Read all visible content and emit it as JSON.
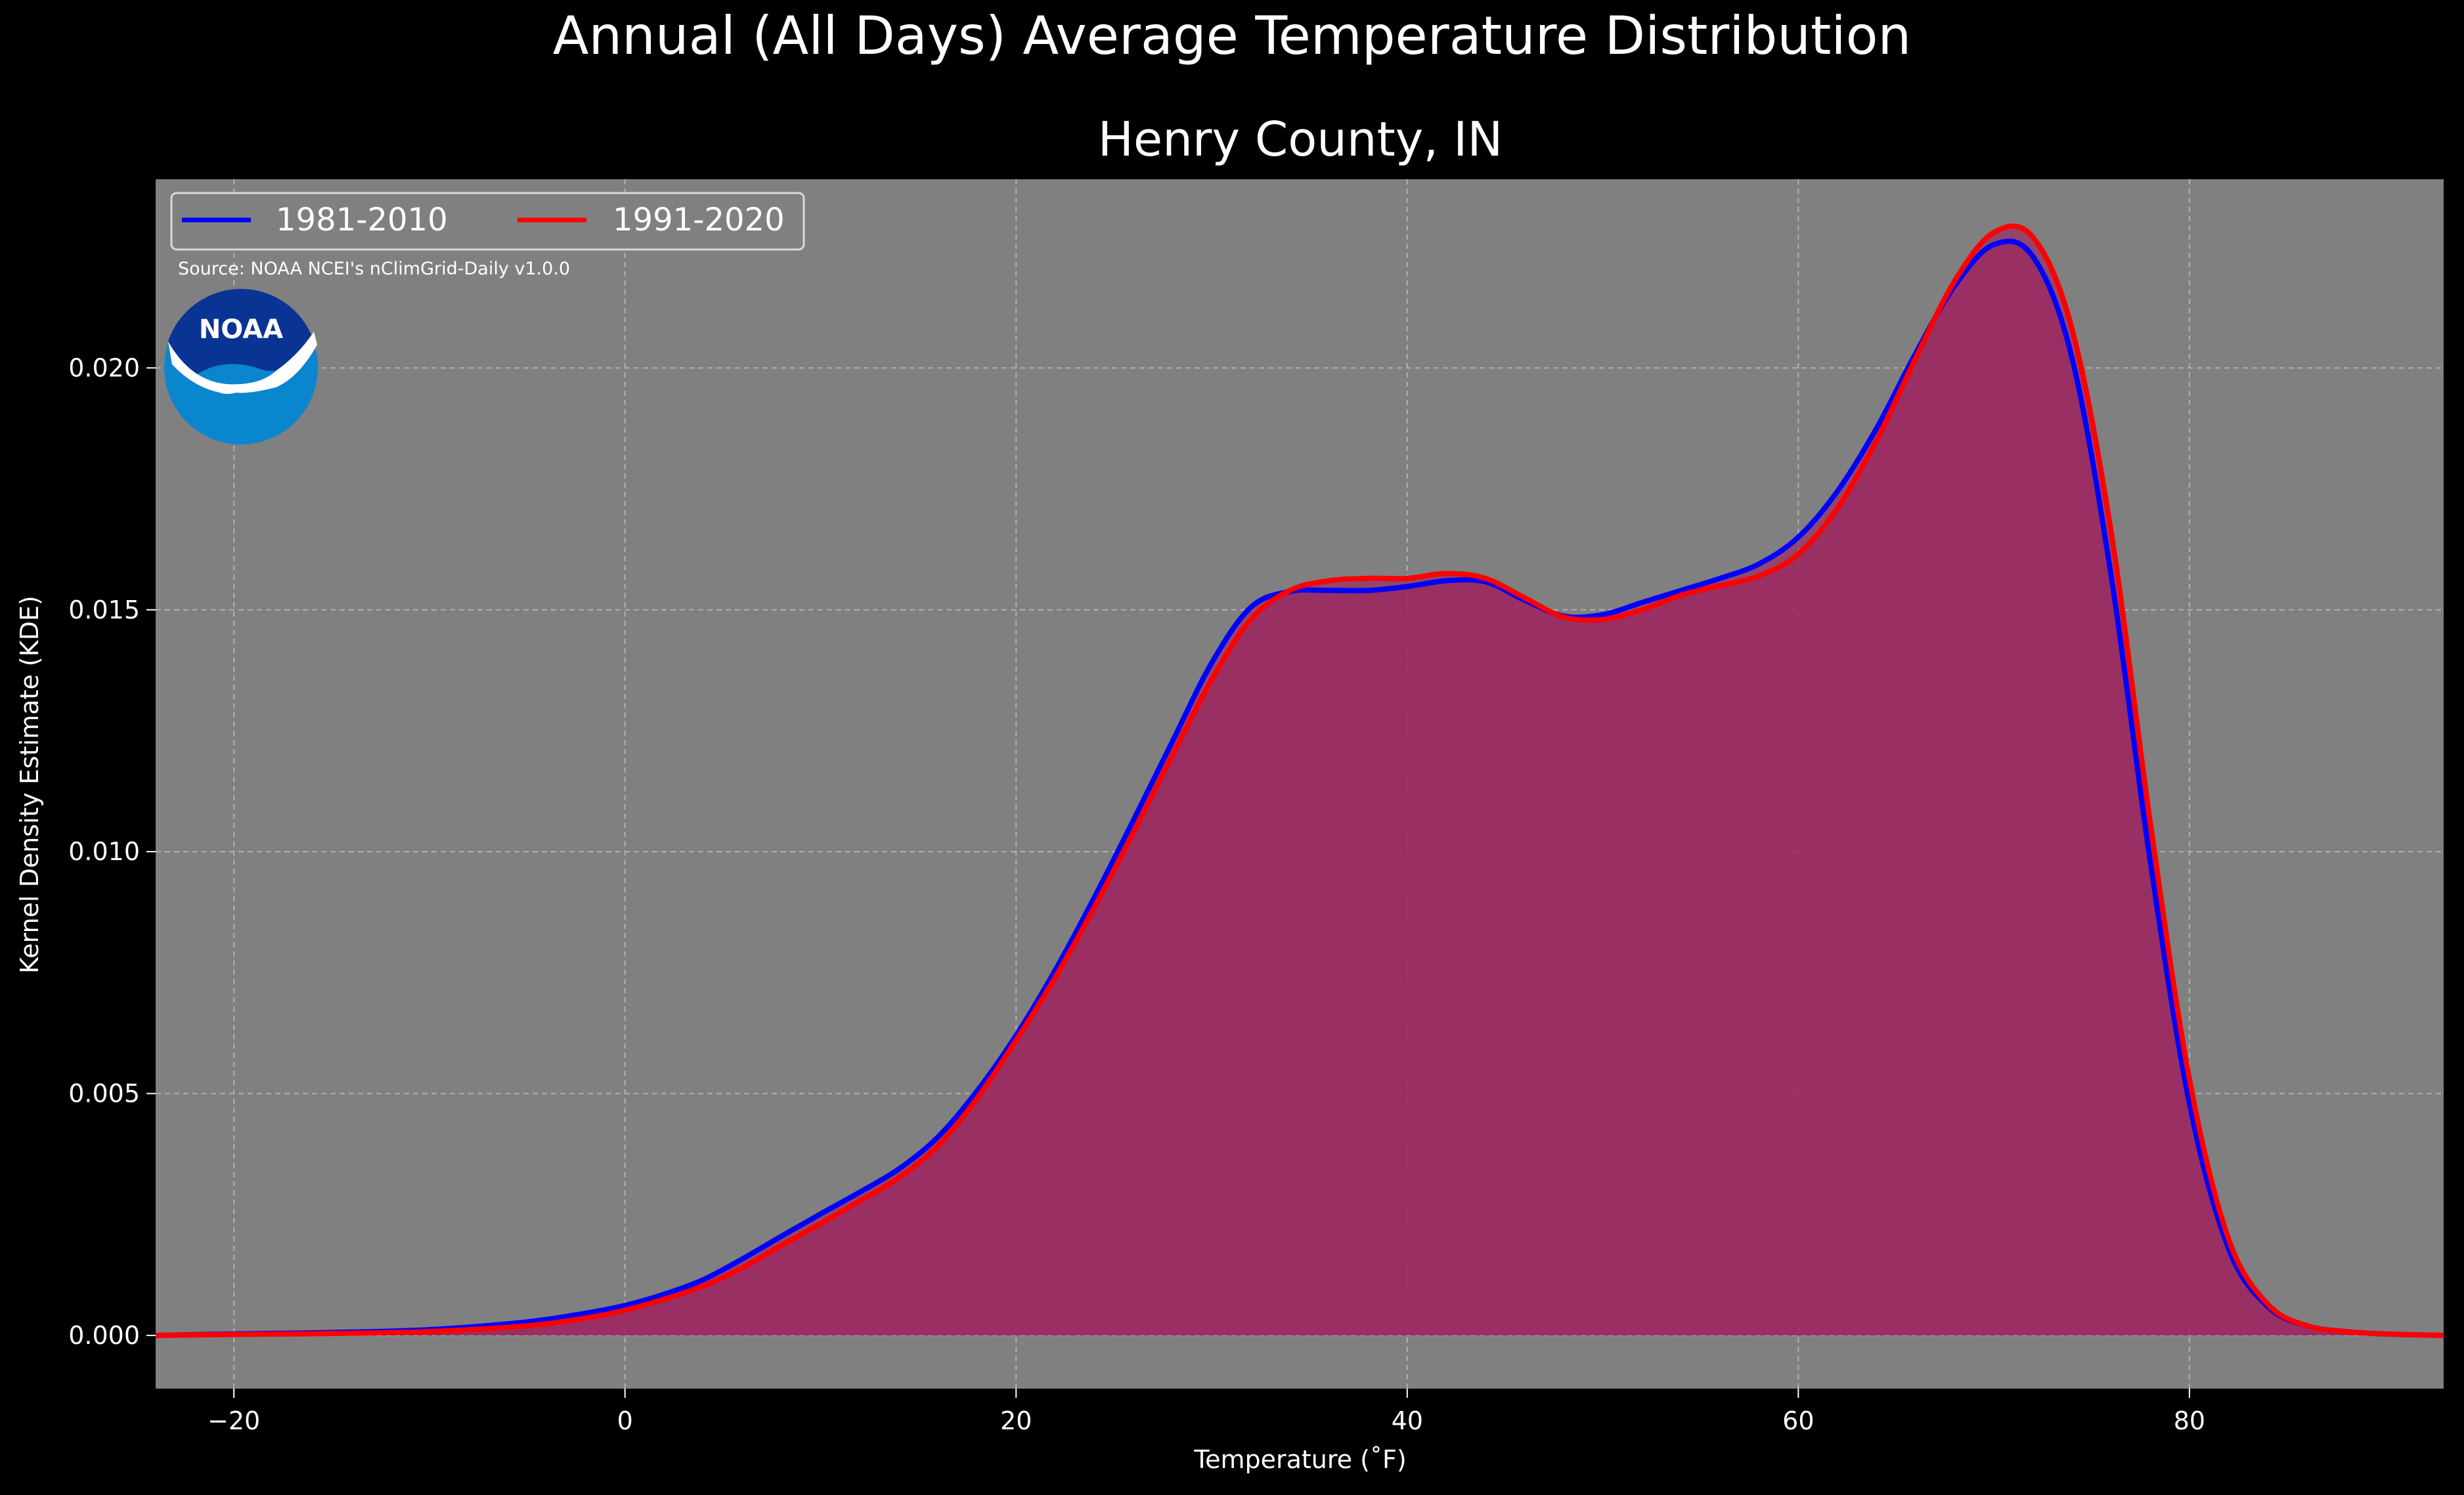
{
  "chart_data": {
    "type": "area",
    "title": "Annual (All Days) Average Temperature Distribution",
    "subtitle": "Henry County, IN",
    "xlabel": "Temperature (˚F)",
    "ylabel": "Kernel Density Estimate (KDE)",
    "xlim": [
      -24,
      93
    ],
    "ylim": [
      -0.0011,
      0.0239
    ],
    "x_ticks": [
      -20,
      0,
      20,
      40,
      60,
      80
    ],
    "x_tick_labels": [
      "−20",
      "0",
      "20",
      "40",
      "60",
      "80"
    ],
    "y_ticks": [
      0.0,
      0.005,
      0.01,
      0.015,
      0.02
    ],
    "y_tick_labels": [
      "0.000",
      "0.005",
      "0.010",
      "0.015",
      "0.020"
    ],
    "grid": true,
    "legend_position": "top-left",
    "source_note": "Source: NOAA NCEI's nClimGrid-Daily v1.0.0",
    "logo_text": "NOAA",
    "colors": {
      "background": "#000000",
      "plot_background": "#808080",
      "fill": "#9e1f5e",
      "text": "#ffffff",
      "grid": "#b0b0b0",
      "logo_dark": "#0a3494",
      "logo_light": "#0a86cf"
    },
    "series": [
      {
        "name": "1981-2010",
        "color": "#0000ff",
        "x": [
          -24,
          -20,
          -15,
          -10,
          -5,
          -2,
          0,
          2,
          4,
          6,
          8,
          10,
          12,
          14,
          16,
          18,
          20,
          22,
          24,
          26,
          28,
          30,
          32,
          34,
          36,
          38,
          40,
          42,
          44,
          46,
          48,
          50,
          52,
          54,
          56,
          58,
          60,
          62,
          64,
          66,
          68,
          70,
          72,
          74,
          76,
          78,
          80,
          82,
          84,
          86,
          88,
          90,
          93
        ],
        "values": [
          0.0,
          3e-05,
          6e-05,
          0.00012,
          0.00028,
          0.00046,
          0.00062,
          0.00085,
          0.00115,
          0.00158,
          0.00205,
          0.00251,
          0.00296,
          0.00344,
          0.0041,
          0.00505,
          0.0062,
          0.00755,
          0.00905,
          0.01065,
          0.01228,
          0.0139,
          0.01505,
          0.01538,
          0.0154,
          0.0154,
          0.01548,
          0.0156,
          0.01558,
          0.0152,
          0.01487,
          0.0149,
          0.01515,
          0.0154,
          0.01565,
          0.01595,
          0.0165,
          0.01745,
          0.01875,
          0.0203,
          0.0217,
          0.02255,
          0.0223,
          0.0202,
          0.0157,
          0.0098,
          0.0048,
          0.0018,
          0.0006,
          0.0002,
          8e-05,
          3e-05,
          0.0
        ]
      },
      {
        "name": "1991-2020",
        "color": "#ff0000",
        "x": [
          -24,
          -20,
          -15,
          -10,
          -5,
          -2,
          0,
          2,
          4,
          6,
          8,
          10,
          12,
          14,
          16,
          18,
          20,
          22,
          24,
          26,
          28,
          30,
          32,
          34,
          36,
          38,
          40,
          42,
          44,
          46,
          48,
          50,
          52,
          54,
          56,
          58,
          60,
          62,
          64,
          66,
          68,
          70,
          72,
          74,
          76,
          78,
          80,
          82,
          84,
          86,
          88,
          90,
          93
        ],
        "values": [
          0.0,
          2e-05,
          4e-05,
          8e-05,
          0.0002,
          0.00036,
          0.00052,
          0.00075,
          0.00102,
          0.0014,
          0.00186,
          0.00231,
          0.00278,
          0.00326,
          0.00392,
          0.0049,
          0.0061,
          0.0074,
          0.00885,
          0.0104,
          0.012,
          0.01355,
          0.0148,
          0.0154,
          0.0156,
          0.01565,
          0.01565,
          0.01575,
          0.01565,
          0.01525,
          0.01485,
          0.0148,
          0.015,
          0.0153,
          0.0155,
          0.0157,
          0.01615,
          0.0171,
          0.0185,
          0.0202,
          0.0218,
          0.0228,
          0.0227,
          0.0208,
          0.0166,
          0.0106,
          0.0053,
          0.002,
          0.00065,
          0.0002,
          8e-05,
          3e-05,
          0.0
        ]
      }
    ]
  }
}
